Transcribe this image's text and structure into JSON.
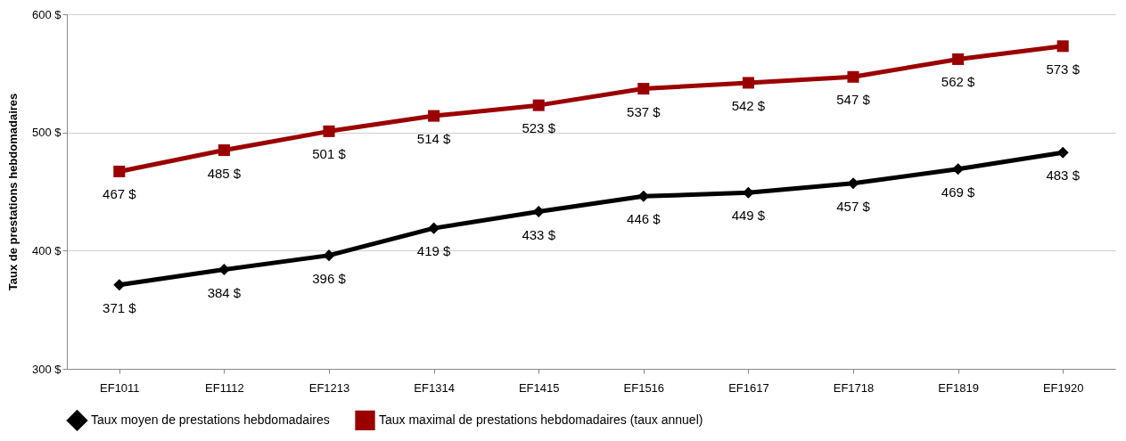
{
  "chart_data": {
    "type": "line",
    "ylabel": "Taux de prestations hebdomadaires",
    "categories": [
      "EF1011",
      "EF1112",
      "EF1213",
      "EF1314",
      "EF1415",
      "EF1516",
      "EF1617",
      "EF1718",
      "EF1819",
      "EF1920"
    ],
    "series": [
      {
        "name": "Taux moyen de prestations hebdomadaires",
        "color": "#000000",
        "marker": "diamond",
        "values": [
          371,
          384,
          396,
          419,
          433,
          446,
          449,
          457,
          469,
          483
        ],
        "value_labels": [
          "371 $",
          "384 $",
          "396 $",
          "419 $",
          "433 $",
          "446 $",
          "449 $",
          "457 $",
          "469 $",
          "483 $"
        ]
      },
      {
        "name": "Taux maximal de prestations hebdomadaires (taux annuel)",
        "color": "#9b0000",
        "marker": "square",
        "values": [
          467,
          485,
          501,
          514,
          523,
          537,
          542,
          547,
          562,
          573
        ],
        "value_labels": [
          "467 $",
          "485 $",
          "501 $",
          "514 $",
          "523 $",
          "537 $",
          "542 $",
          "547 $",
          "562 $",
          "573 $"
        ]
      }
    ],
    "ylim": [
      300,
      600
    ],
    "yticks": [
      {
        "value": 300,
        "label": "300 $"
      },
      {
        "value": 400,
        "label": "400 $"
      },
      {
        "value": 500,
        "label": "500 $"
      },
      {
        "value": 600,
        "label": "600 $"
      }
    ],
    "grid": "y",
    "legend": "bottom",
    "line_style": "solid"
  }
}
